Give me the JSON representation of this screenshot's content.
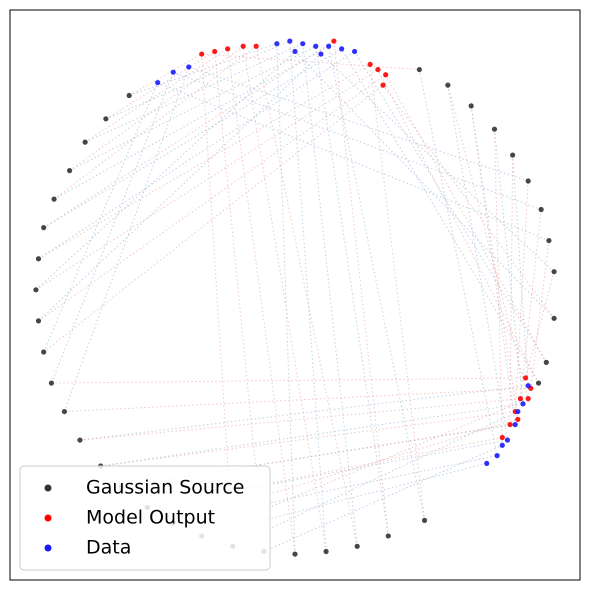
{
  "chart_data": {
    "type": "scatter",
    "xlim": [
      -1.1,
      1.1
    ],
    "ylim": [
      -1.1,
      1.1
    ],
    "legend": "lower left",
    "series": [
      {
        "name": "Gaussian Source",
        "color": "#333333",
        "x": [
          -0.64,
          -0.73,
          -0.81,
          -0.87,
          -0.93,
          -0.97,
          -0.99,
          -1.0,
          -0.99,
          -0.97,
          -0.94,
          -0.89,
          -0.83,
          -0.75,
          -0.67,
          -0.57,
          -0.47,
          -0.36,
          -0.24,
          -0.12,
          0.0,
          0.12,
          0.24,
          0.36,
          0.5,
          0.94,
          0.97,
          1.0,
          1.0,
          0.98,
          0.95,
          0.9,
          0.84,
          0.77,
          0.68,
          0.59,
          0.48
        ],
        "y": [
          0.77,
          0.68,
          0.59,
          0.48,
          0.37,
          0.26,
          0.14,
          0.02,
          -0.1,
          -0.22,
          -0.34,
          -0.45,
          -0.56,
          -0.66,
          -0.74,
          -0.82,
          -0.88,
          -0.93,
          -0.97,
          -0.99,
          -1.0,
          -0.99,
          -0.97,
          -0.93,
          -0.87,
          -0.34,
          -0.26,
          -0.09,
          0.09,
          0.21,
          0.33,
          0.44,
          0.54,
          0.64,
          0.73,
          0.81,
          0.87
        ]
      },
      {
        "name": "Model Output",
        "color": "#ff0000",
        "x": [
          -0.36,
          -0.31,
          -0.26,
          -0.2,
          -0.15,
          0.15,
          0.29,
          0.32,
          0.35,
          0.34,
          0.89,
          0.91,
          0.87,
          0.85,
          0.83,
          0.8,
          0.86,
          0.9
        ],
        "y": [
          0.93,
          0.94,
          0.95,
          0.96,
          0.96,
          0.98,
          0.89,
          0.87,
          0.85,
          0.81,
          -0.32,
          -0.36,
          -0.4,
          -0.45,
          -0.5,
          -0.55,
          -0.48,
          -0.4
        ]
      },
      {
        "name": "Data",
        "color": "#1a1aff",
        "x": [
          -0.07,
          -0.02,
          0.03,
          0.08,
          0.13,
          0.18,
          0.23,
          0.0,
          0.1,
          -0.53,
          -0.47,
          -0.41,
          0.9,
          0.88,
          0.85,
          0.82,
          0.78,
          0.74,
          0.86,
          0.8
        ],
        "y": [
          0.97,
          0.98,
          0.97,
          0.96,
          0.96,
          0.95,
          0.94,
          0.94,
          0.93,
          0.82,
          0.86,
          0.88,
          -0.35,
          -0.42,
          -0.5,
          -0.56,
          -0.62,
          -0.65,
          -0.45,
          -0.58
        ]
      }
    ]
  }
}
